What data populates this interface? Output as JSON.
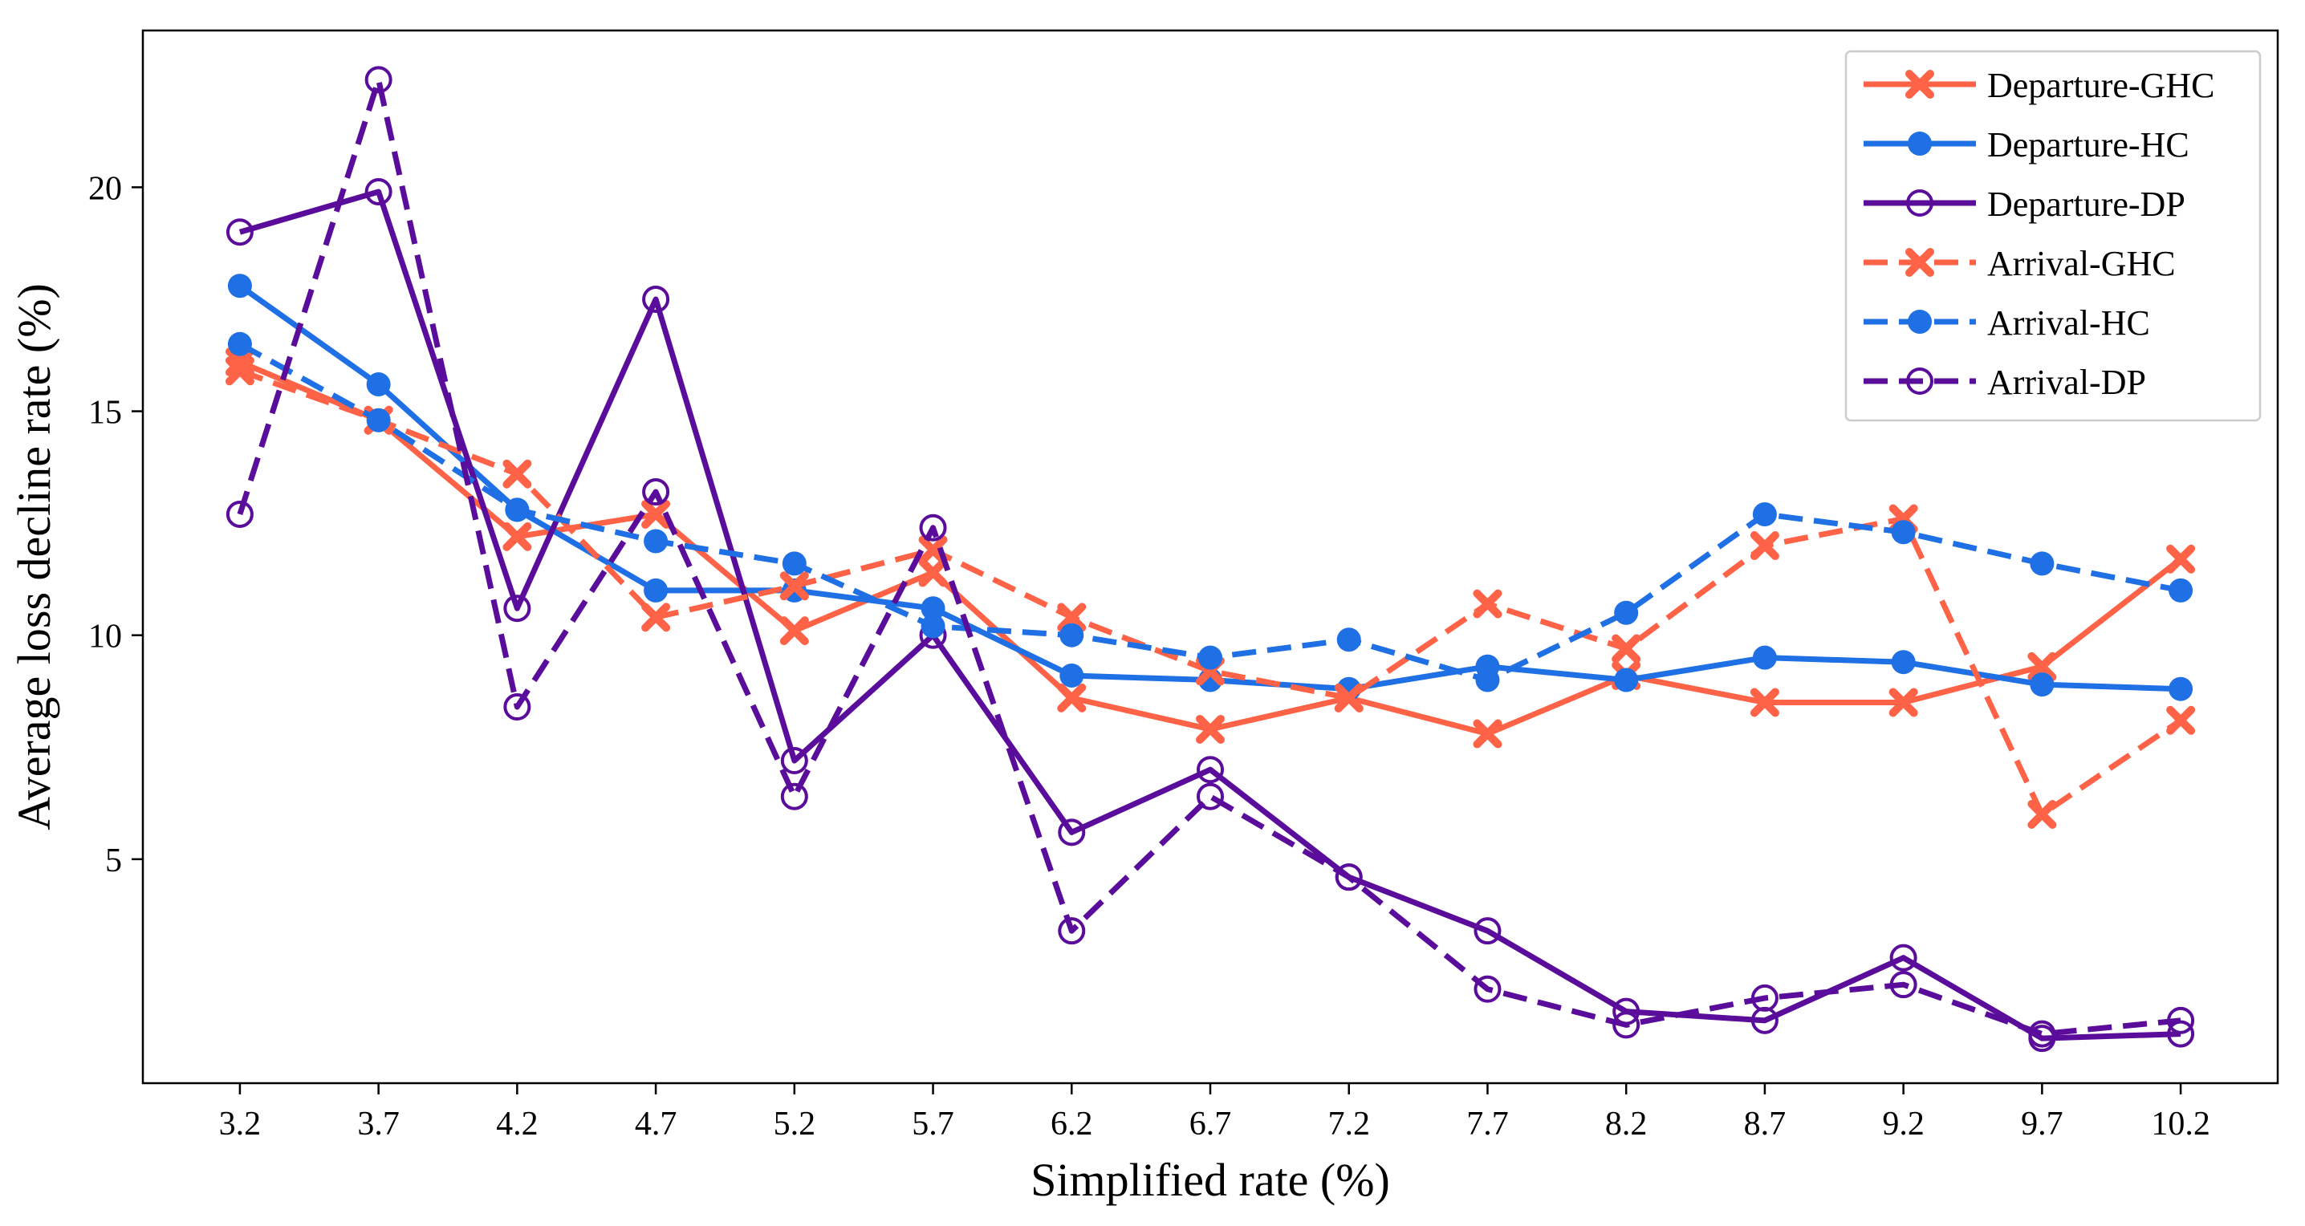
{
  "chart_data": {
    "type": "line",
    "title": "",
    "xlabel": "Simplified rate (%)",
    "ylabel": "Average loss decline rate (%)",
    "x": [
      3.2,
      3.7,
      4.2,
      4.7,
      5.2,
      5.7,
      6.2,
      6.7,
      7.2,
      7.7,
      8.2,
      8.7,
      9.2,
      9.7,
      10.2
    ],
    "x_tick_labels": [
      "3.2",
      "3.7",
      "4.2",
      "4.7",
      "5.2",
      "5.7",
      "6.2",
      "6.7",
      "7.2",
      "7.7",
      "8.2",
      "8.7",
      "9.2",
      "9.7",
      "10.2"
    ],
    "y_ticks": [
      5,
      10,
      15,
      20
    ],
    "y_tick_labels": [
      "5",
      "10",
      "15",
      "20"
    ],
    "xlim": [
      2.85,
      10.55
    ],
    "ylim": [
      0,
      23.5
    ],
    "grid": false,
    "legend_position": "top-right",
    "series": [
      {
        "name": "Departure-GHC",
        "color": "#FF6347",
        "linestyle": "solid",
        "marker": "x",
        "values": [
          16.1,
          14.8,
          12.2,
          12.7,
          10.1,
          11.4,
          8.6,
          7.9,
          8.6,
          7.8,
          9.1,
          8.5,
          8.5,
          9.3,
          11.7
        ]
      },
      {
        "name": "Departure-HC",
        "color": "#1F6FE5",
        "linestyle": "solid",
        "marker": "o",
        "values": [
          17.8,
          15.6,
          12.8,
          11.0,
          11.0,
          10.6,
          9.1,
          9.0,
          8.8,
          9.3,
          9.0,
          9.5,
          9.4,
          8.9,
          8.8
        ]
      },
      {
        "name": "Departure-DP",
        "color": "#5A0D9A",
        "linestyle": "solid",
        "marker": "open-circle",
        "values": [
          19.0,
          19.9,
          10.6,
          17.5,
          7.2,
          10.0,
          5.6,
          7.0,
          4.6,
          3.4,
          1.6,
          1.4,
          2.8,
          1.0,
          1.1
        ]
      },
      {
        "name": "Arrival-GHC",
        "color": "#FF6347",
        "linestyle": "dashed",
        "marker": "x",
        "values": [
          15.9,
          14.8,
          13.6,
          10.4,
          11.1,
          11.9,
          10.4,
          9.2,
          8.6,
          10.7,
          9.7,
          12.0,
          12.6,
          6.0,
          8.1
        ]
      },
      {
        "name": "Arrival-HC",
        "color": "#1F6FE5",
        "linestyle": "dashed",
        "marker": "o",
        "values": [
          16.5,
          14.8,
          12.8,
          12.1,
          11.6,
          10.2,
          10.0,
          9.5,
          9.9,
          9.0,
          10.5,
          12.7,
          12.3,
          11.6,
          11.0
        ]
      },
      {
        "name": "Arrival-DP",
        "color": "#5A0D9A",
        "linestyle": "dashed",
        "marker": "open-circle",
        "values": [
          12.7,
          22.4,
          8.4,
          13.2,
          6.4,
          12.4,
          3.4,
          6.4,
          4.6,
          2.1,
          1.3,
          1.9,
          2.2,
          1.1,
          1.4
        ]
      }
    ]
  }
}
